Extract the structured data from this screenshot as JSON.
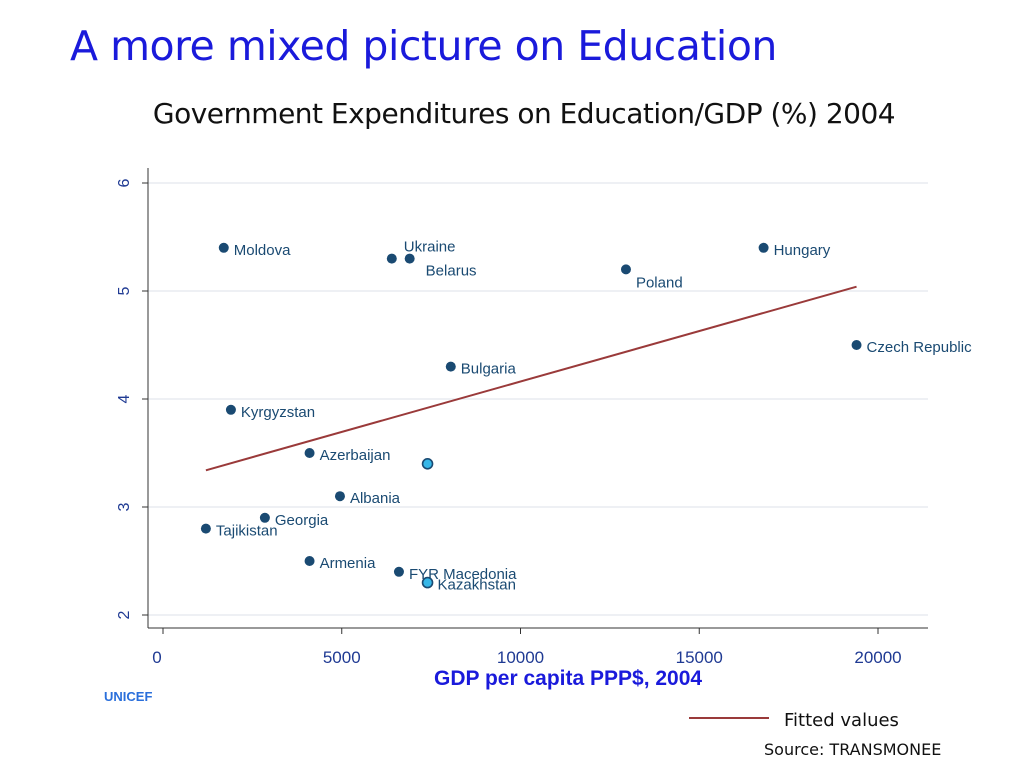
{
  "slide": {
    "title": "A more mixed picture on Education",
    "org": "UNICEF",
    "source": "Source: TRANSMONEE"
  },
  "colors": {
    "title": "#1a1adb",
    "axis": "#1f3a93",
    "point": "#1a4a72",
    "highlight_fill": "#36b7e8",
    "fit_line": "#9a3a3a"
  },
  "chart_data": {
    "type": "scatter",
    "title": "Government Expenditures on Education/GDP (%) 2004",
    "xlabel": "GDP per capita PPP$, 2004",
    "ylabel": "",
    "xlim": [
      0,
      21300
    ],
    "ylim": [
      1.95,
      6.12
    ],
    "xticks": [
      0,
      5000,
      10000,
      15000,
      20000
    ],
    "yticks": [
      2,
      3,
      4,
      5,
      6
    ],
    "grid": true,
    "points": [
      {
        "label": "Moldova",
        "x": 1700,
        "y": 5.4
      },
      {
        "label": "Ukraine",
        "x": 6400,
        "y": 5.3
      },
      {
        "label": "Belarus",
        "x": 6900,
        "y": 5.3
      },
      {
        "label": "Poland",
        "x": 12950,
        "y": 5.2
      },
      {
        "label": "Hungary",
        "x": 16800,
        "y": 5.4
      },
      {
        "label": "Czech Republic",
        "x": 19400,
        "y": 4.5
      },
      {
        "label": "Bulgaria",
        "x": 8050,
        "y": 4.3
      },
      {
        "label": "Kyrgyzstan",
        "x": 1900,
        "y": 3.9
      },
      {
        "label": "Azerbaijan",
        "x": 4100,
        "y": 3.5
      },
      {
        "label": "",
        "x": 7400,
        "y": 3.4,
        "highlight": true
      },
      {
        "label": "Albania",
        "x": 4950,
        "y": 3.1
      },
      {
        "label": "Georgia",
        "x": 2850,
        "y": 2.9
      },
      {
        "label": "Tajikistan",
        "x": 1200,
        "y": 2.8
      },
      {
        "label": "Armenia",
        "x": 4100,
        "y": 2.5
      },
      {
        "label": "FYR Macedonia",
        "x": 6600,
        "y": 2.4
      },
      {
        "label": "Kazakhstan",
        "x": 7400,
        "y": 2.3,
        "highlight": true
      }
    ],
    "fitted_line": {
      "x": [
        1200,
        19400
      ],
      "y": [
        3.34,
        5.04
      ]
    },
    "legend": [
      "Fitted values"
    ],
    "legend_position": "bottom-right"
  }
}
